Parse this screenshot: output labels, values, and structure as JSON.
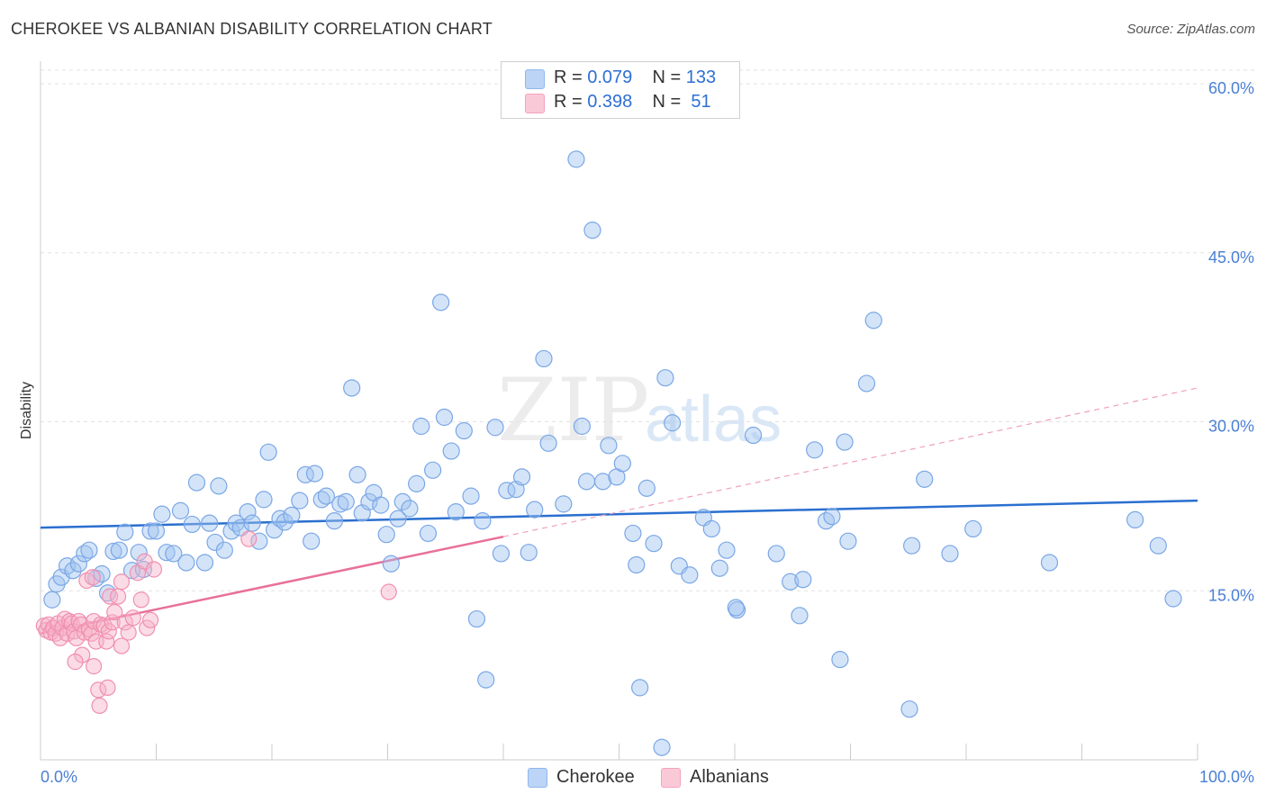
{
  "title": "CHEROKEE VS ALBANIAN DISABILITY CORRELATION CHART",
  "source": "Source: ZipAtlas.com",
  "watermark": {
    "a": "ZIP",
    "b": "atlas"
  },
  "colors": {
    "cherokee": "#8fb8ee",
    "cherokee_line": "#2a6fd0",
    "albanians": "#f4a3bd",
    "albanians_line": "#e8709a",
    "tick": "#4a7fd6"
  },
  "legend": {
    "rows": [
      {
        "r_label": "R =",
        "r_value": "0.079",
        "n_label": "N =",
        "n_value": "133"
      },
      {
        "r_label": "R =",
        "r_value": "0.398",
        "n_label": "N =",
        "n_value": " 51"
      }
    ]
  },
  "chart_data": {
    "type": "scatter",
    "title": "CHEROKEE VS ALBANIAN DISABILITY CORRELATION CHART",
    "xlabel": "",
    "ylabel": "Disability",
    "xlim": [
      0,
      100
    ],
    "ylim": [
      0,
      62
    ],
    "x_tick_labels": [
      "0.0%",
      "100.0%"
    ],
    "y_ticks": [
      15,
      30,
      45,
      60
    ],
    "y_tick_labels": [
      "15.0%",
      "30.0%",
      "45.0%",
      "60.0%"
    ],
    "grid": true,
    "legend_position": "top-center",
    "series": [
      {
        "name": "Cherokee",
        "color": "#8fb8ee",
        "trend": {
          "x": [
            0,
            100
          ],
          "y": [
            20.6,
            23.0
          ],
          "style": "solid"
        },
        "points": [
          [
            1,
            14.2
          ],
          [
            1.4,
            15.6
          ],
          [
            1.8,
            16.2
          ],
          [
            2.3,
            17.2
          ],
          [
            2.8,
            16.8
          ],
          [
            3.3,
            17.4
          ],
          [
            3.8,
            18.3
          ],
          [
            4.2,
            18.6
          ],
          [
            4.8,
            16.1
          ],
          [
            5.3,
            16.5
          ],
          [
            5.8,
            14.8
          ],
          [
            6.3,
            18.5
          ],
          [
            6.8,
            18.6
          ],
          [
            7.3,
            20.2
          ],
          [
            7.9,
            16.8
          ],
          [
            8.5,
            18.4
          ],
          [
            8.9,
            16.9
          ],
          [
            9.5,
            20.3
          ],
          [
            10,
            20.3
          ],
          [
            10.5,
            21.8
          ],
          [
            10.9,
            18.4
          ],
          [
            11.5,
            18.3
          ],
          [
            12.1,
            22.1
          ],
          [
            12.6,
            17.5
          ],
          [
            13.1,
            20.9
          ],
          [
            13.5,
            24.6
          ],
          [
            14.2,
            17.5
          ],
          [
            14.6,
            21.0
          ],
          [
            15.1,
            19.3
          ],
          [
            15.4,
            24.3
          ],
          [
            15.9,
            18.6
          ],
          [
            16.5,
            20.3
          ],
          [
            16.9,
            21.0
          ],
          [
            17.3,
            20.6
          ],
          [
            17.9,
            22.0
          ],
          [
            18.3,
            21.0
          ],
          [
            18.9,
            19.4
          ],
          [
            19.3,
            23.1
          ],
          [
            19.7,
            27.3
          ],
          [
            20.2,
            20.4
          ],
          [
            20.7,
            21.4
          ],
          [
            21.1,
            21.1
          ],
          [
            21.7,
            21.7
          ],
          [
            22.4,
            23.0
          ],
          [
            22.9,
            25.3
          ],
          [
            23.4,
            19.4
          ],
          [
            23.7,
            25.4
          ],
          [
            24.3,
            23.1
          ],
          [
            24.7,
            23.4
          ],
          [
            25.4,
            21.2
          ],
          [
            25.9,
            22.7
          ],
          [
            26.4,
            22.9
          ],
          [
            26.9,
            33.0
          ],
          [
            27.4,
            25.3
          ],
          [
            27.8,
            21.9
          ],
          [
            28.4,
            22.9
          ],
          [
            28.8,
            23.7
          ],
          [
            29.4,
            22.6
          ],
          [
            29.9,
            20.0
          ],
          [
            30.3,
            17.4
          ],
          [
            30.9,
            21.4
          ],
          [
            31.3,
            22.9
          ],
          [
            31.9,
            22.3
          ],
          [
            32.5,
            24.5
          ],
          [
            32.9,
            29.6
          ],
          [
            33.5,
            20.1
          ],
          [
            33.9,
            25.7
          ],
          [
            34.6,
            40.6
          ],
          [
            34.9,
            30.4
          ],
          [
            35.5,
            27.4
          ],
          [
            35.9,
            22.0
          ],
          [
            36.6,
            29.2
          ],
          [
            37.2,
            23.4
          ],
          [
            38.2,
            21.2
          ],
          [
            37.7,
            12.5
          ],
          [
            38.5,
            7.1
          ],
          [
            39.3,
            29.5
          ],
          [
            39.8,
            18.3
          ],
          [
            40.3,
            23.9
          ],
          [
            41.1,
            24.0
          ],
          [
            41.6,
            25.1
          ],
          [
            42.2,
            18.4
          ],
          [
            42.7,
            22.2
          ],
          [
            43.5,
            35.6
          ],
          [
            43.9,
            28.1
          ],
          [
            45.2,
            22.7
          ],
          [
            46.3,
            53.3
          ],
          [
            46.8,
            29.6
          ],
          [
            47.2,
            24.7
          ],
          [
            47.7,
            47.0
          ],
          [
            48.6,
            24.7
          ],
          [
            49.1,
            27.9
          ],
          [
            49.8,
            25.1
          ],
          [
            50.3,
            26.3
          ],
          [
            51.2,
            20.1
          ],
          [
            51.8,
            6.4
          ],
          [
            51.5,
            17.3
          ],
          [
            52.4,
            24.1
          ],
          [
            53.0,
            19.2
          ],
          [
            53.7,
            1.1
          ],
          [
            54.0,
            33.9
          ],
          [
            54.6,
            29.9
          ],
          [
            55.2,
            17.2
          ],
          [
            56.1,
            16.4
          ],
          [
            57.3,
            21.5
          ],
          [
            58.0,
            20.5
          ],
          [
            58.7,
            17.0
          ],
          [
            59.3,
            18.6
          ],
          [
            60.2,
            13.3
          ],
          [
            60.1,
            13.5
          ],
          [
            61.6,
            28.8
          ],
          [
            63.6,
            18.3
          ],
          [
            64.8,
            15.8
          ],
          [
            65.6,
            12.8
          ],
          [
            65.9,
            16.0
          ],
          [
            66.9,
            27.5
          ],
          [
            67.9,
            21.2
          ],
          [
            68.4,
            21.6
          ],
          [
            69.1,
            8.9
          ],
          [
            69.5,
            28.2
          ],
          [
            69.8,
            19.4
          ],
          [
            71.4,
            33.4
          ],
          [
            72.0,
            39.0
          ],
          [
            75.1,
            4.5
          ],
          [
            75.3,
            19.0
          ],
          [
            76.4,
            24.9
          ],
          [
            78.6,
            18.3
          ],
          [
            80.6,
            20.5
          ],
          [
            87.2,
            17.5
          ],
          [
            94.6,
            21.3
          ],
          [
            96.6,
            19.0
          ],
          [
            97.9,
            14.3
          ]
        ]
      },
      {
        "name": "Albanians",
        "color": "#f4a3bd",
        "trend": {
          "x": [
            0,
            40
          ],
          "y": [
            11.2,
            19.8
          ],
          "style": "solid",
          "extended": {
            "x": [
              40,
              100
            ],
            "y": [
              19.8,
              33.0
            ],
            "style": "dashed"
          }
        },
        "points": [
          [
            0.3,
            11.9
          ],
          [
            0.5,
            11.5
          ],
          [
            0.7,
            12.0
          ],
          [
            0.9,
            11.3
          ],
          [
            1.1,
            11.7
          ],
          [
            1.3,
            11.2
          ],
          [
            1.5,
            12.1
          ],
          [
            1.7,
            10.8
          ],
          [
            1.9,
            11.7
          ],
          [
            2.1,
            12.5
          ],
          [
            2.3,
            11.2
          ],
          [
            2.5,
            12.3
          ],
          [
            2.7,
            12.1
          ],
          [
            2.9,
            11.4
          ],
          [
            3.1,
            10.8
          ],
          [
            3.3,
            12.3
          ],
          [
            3.5,
            12.0
          ],
          [
            3.6,
            9.3
          ],
          [
            3.8,
            11.3
          ],
          [
            4.0,
            15.9
          ],
          [
            4.2,
            11.6
          ],
          [
            4.4,
            11.2
          ],
          [
            4.6,
            12.3
          ],
          [
            4.8,
            10.5
          ],
          [
            5.0,
            6.2
          ],
          [
            5.2,
            12.0
          ],
          [
            5.5,
            11.9
          ],
          [
            5.7,
            10.5
          ],
          [
            5.9,
            11.4
          ],
          [
            6.0,
            14.5
          ],
          [
            6.2,
            12.2
          ],
          [
            6.4,
            13.1
          ],
          [
            6.7,
            14.5
          ],
          [
            7.0,
            10.1
          ],
          [
            7.3,
            12.2
          ],
          [
            7.6,
            11.3
          ],
          [
            8.0,
            12.6
          ],
          [
            8.4,
            16.6
          ],
          [
            8.7,
            14.2
          ],
          [
            9.0,
            17.6
          ],
          [
            9.2,
            11.7
          ],
          [
            9.5,
            12.4
          ],
          [
            9.8,
            16.9
          ],
          [
            3.0,
            8.7
          ],
          [
            4.6,
            8.3
          ],
          [
            5.1,
            4.8
          ],
          [
            5.8,
            6.4
          ],
          [
            18.0,
            19.6
          ],
          [
            30.1,
            14.9
          ],
          [
            7.0,
            15.8
          ],
          [
            4.5,
            16.2
          ]
        ]
      }
    ]
  }
}
